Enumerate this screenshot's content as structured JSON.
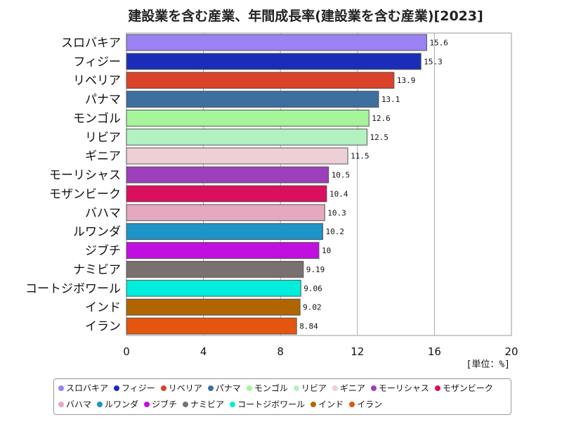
{
  "chart_data": {
    "type": "bar",
    "orientation": "horizontal",
    "title": "建設業を含む産業、年間成長率(建設業を含む産業)[2023]",
    "unit_label": "[単位：%]",
    "xlim": [
      0,
      20
    ],
    "xticks": [
      "0",
      "4",
      "8",
      "12",
      "16",
      "20"
    ],
    "grid": true,
    "legend_position": "bottom",
    "categories": [
      "スロバキア",
      "フィジー",
      "リベリア",
      "パナマ",
      "モンゴル",
      "リビア",
      "ギニア",
      "モーリシャス",
      "モザンビーク",
      "バハマ",
      "ルワンダ",
      "ジブチ",
      "ナミビア",
      "コートジボワール",
      "インド",
      "イラン"
    ],
    "values": [
      15.6,
      15.3,
      13.9,
      13.1,
      12.6,
      12.5,
      11.5,
      10.5,
      10.4,
      10.3,
      10.2,
      10,
      9.19,
      9.06,
      9.02,
      8.84
    ],
    "value_labels": [
      "15.6",
      "15.3",
      "13.9",
      "13.1",
      "12.6",
      "12.5",
      "11.5",
      "10.5",
      "10.4",
      "10.3",
      "10.2",
      "10",
      "9.19",
      "9.06",
      "9.02",
      "8.84"
    ],
    "colors": [
      "#9a82f5",
      "#1a2db8",
      "#d8432a",
      "#3d6fa0",
      "#a6f59a",
      "#b3f2c0",
      "#eecfd6",
      "#9b3fba",
      "#d8105e",
      "#e4a8bf",
      "#1e93c8",
      "#c010e0",
      "#7a7070",
      "#00eedb",
      "#b06600",
      "#e4560f"
    ]
  }
}
